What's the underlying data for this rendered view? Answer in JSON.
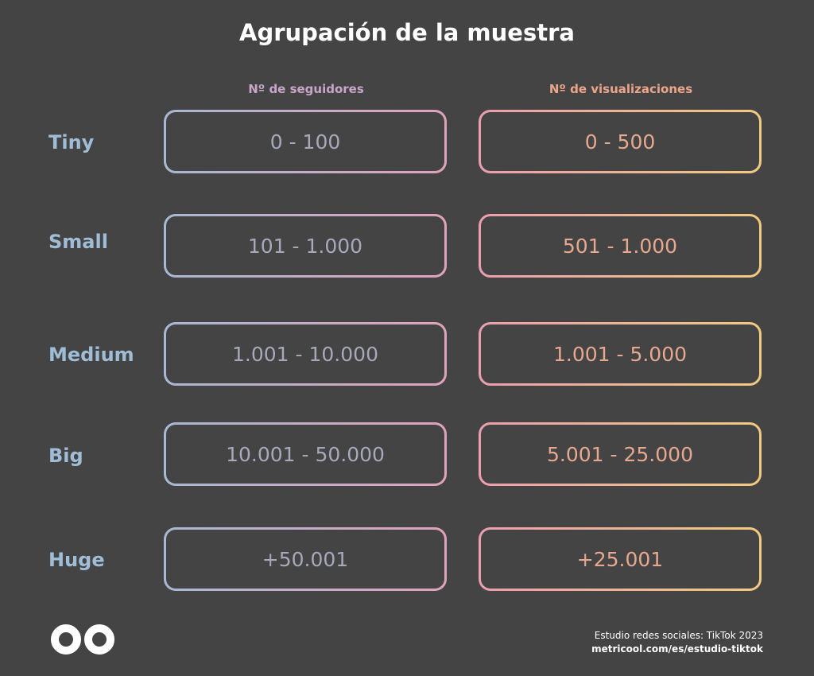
{
  "title": "Agrupación de la muestra",
  "columns": {
    "followers": "Nº de seguidores",
    "views": "Nº de visualizaciones"
  },
  "rows": [
    {
      "label": "Tiny",
      "followers": "0 - 100",
      "views": "0 - 500"
    },
    {
      "label": "Small",
      "followers": "101 - 1.000",
      "views": "501 - 1.000"
    },
    {
      "label": "Medium",
      "followers": "1.001 - 10.000",
      "views": "1.001 - 5.000"
    },
    {
      "label": "Big",
      "followers": "10.001 - 50.000",
      "views": "5.001 - 25.000"
    },
    {
      "label": "Huge",
      "followers": "+50.001",
      "views": "+25.001"
    }
  ],
  "footer": {
    "study": "Estudio redes sociales: TikTok 2023",
    "url": "metricool.com/es/estudio-tiktok"
  },
  "logo": {
    "icon": "metricool-infinity-icon"
  },
  "colors": {
    "background": "#444444",
    "label": "#9fbdd6",
    "followers_gradient": [
      "#a9b8d3",
      "#e1a2bc"
    ],
    "views_gradient": [
      "#ec9eae",
      "#f2ca7f"
    ]
  }
}
